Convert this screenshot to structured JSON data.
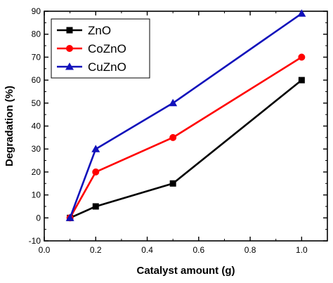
{
  "chart_data": {
    "type": "line",
    "xlabel": "Catalyst amount (g)",
    "ylabel": "Degradation (%)",
    "xlim": [
      0.0,
      1.1
    ],
    "ylim": [
      -10,
      90
    ],
    "xticks": [
      0.0,
      0.2,
      0.4,
      0.6,
      0.8,
      1.0
    ],
    "yticks": [
      -10,
      0,
      10,
      20,
      30,
      40,
      50,
      60,
      70,
      80,
      90
    ],
    "xtick_labels": [
      "0.0",
      "0.2",
      "0.4",
      "0.6",
      "0.8",
      "1.0"
    ],
    "ytick_labels": [
      "-10",
      "0",
      "10",
      "20",
      "30",
      "40",
      "50",
      "60",
      "70",
      "80",
      "90"
    ],
    "legend_position": "top-left",
    "grid": false,
    "series": [
      {
        "name": "ZnO",
        "color": "#000000",
        "marker": "square",
        "x": [
          0.1,
          0.2,
          0.5,
          1.0
        ],
        "y": [
          0,
          5,
          15,
          60
        ]
      },
      {
        "name": "CoZnO",
        "color": "#ff0000",
        "marker": "circle",
        "x": [
          0.1,
          0.2,
          0.5,
          1.0
        ],
        "y": [
          0,
          20,
          35,
          70
        ]
      },
      {
        "name": "CuZnO",
        "color": "#1111bb",
        "marker": "triangle",
        "x": [
          0.1,
          0.2,
          0.5,
          1.0
        ],
        "y": [
          0,
          30,
          50,
          89
        ]
      }
    ]
  }
}
